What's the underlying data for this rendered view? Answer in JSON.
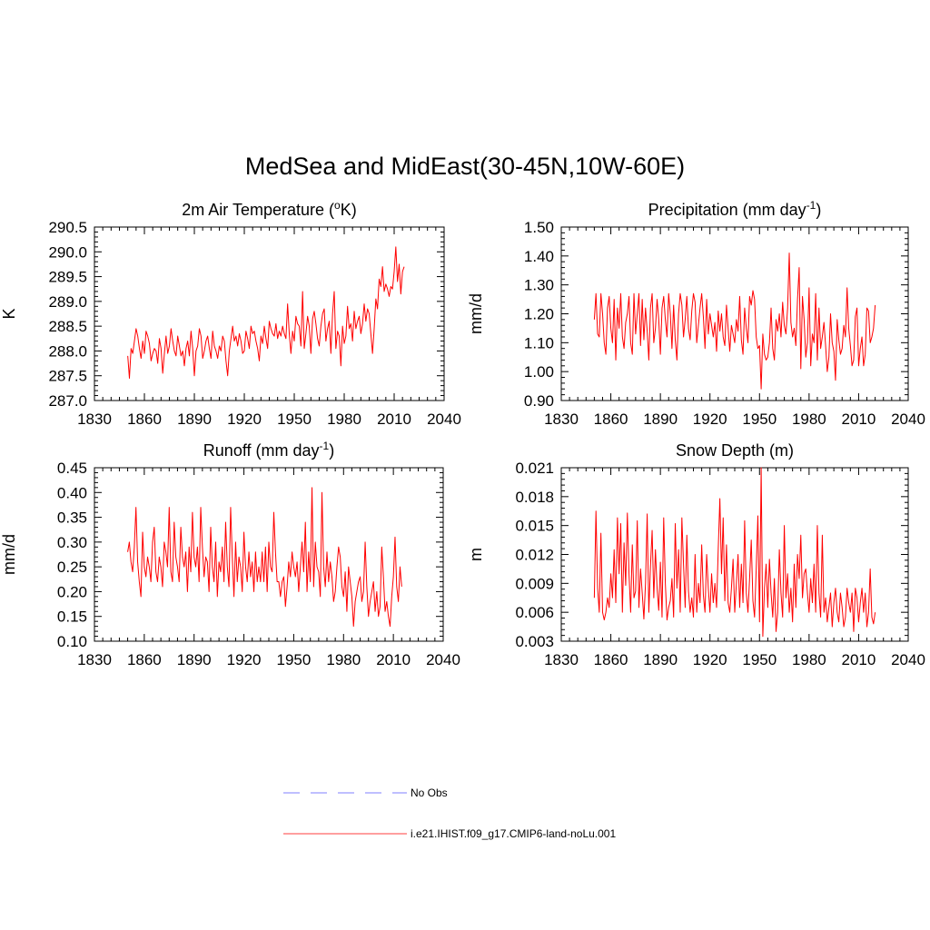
{
  "title": "MedSea and MidEast(30-45N,10W-60E)",
  "colors": {
    "model": "#ff0000",
    "obs": "#9999ff",
    "axis": "#000000"
  },
  "legend": [
    {
      "label": "No Obs",
      "style": "dashed",
      "color": "#9999ff"
    },
    {
      "label": "i.e21.IHIST.f09_g17.CMIP6-land-noLu.001",
      "style": "solid",
      "color": "#ff6666"
    }
  ],
  "chart_data": [
    {
      "type": "line",
      "title_main": "2m Air Temperature (",
      "title_sup": "o",
      "title_tail": "K)",
      "ylabel": "K",
      "xlim": [
        1830,
        2040
      ],
      "ylim": [
        287.0,
        290.5
      ],
      "xticks": [
        "1830",
        "1860",
        "1890",
        "1920",
        "1950",
        "1980",
        "2010",
        "2040"
      ],
      "yticks": [
        "287.0",
        "287.5",
        "288.0",
        "288.5",
        "289.0",
        "289.5",
        "290.0",
        "290.5"
      ],
      "series": [
        {
          "x_start": 1850,
          "values": [
            287.9,
            287.45,
            288.05,
            287.95,
            288.2,
            288.45,
            288.3,
            288.05,
            287.85,
            288.2,
            287.95,
            288.4,
            288.3,
            288.15,
            287.8,
            287.95,
            288.05,
            288.0,
            287.75,
            288.25,
            288.05,
            287.55,
            287.95,
            288.3,
            287.95,
            288.1,
            288.45,
            288.2,
            288.0,
            287.9,
            288.3,
            288.1,
            287.9,
            288.0,
            287.7,
            288.05,
            288.2,
            287.9,
            288.4,
            288.05,
            287.5,
            288.0,
            288.1,
            288.45,
            288.3,
            287.85,
            288.0,
            288.2,
            288.3,
            288.05,
            287.85,
            288.4,
            288.1,
            288.0,
            287.85,
            288.1,
            288.0,
            288.3,
            288.2,
            287.8,
            287.5,
            288.0,
            288.25,
            288.5,
            288.2,
            288.3,
            288.1,
            288.35,
            288.2,
            287.95,
            288.0,
            288.4,
            288.25,
            288.05,
            288.5,
            288.35,
            288.4,
            288.2,
            288.05,
            287.8,
            288.3,
            288.15,
            288.5,
            288.25,
            288.05,
            288.6,
            288.45,
            288.35,
            288.3,
            288.55,
            288.25,
            288.4,
            288.3,
            288.5,
            288.35,
            288.25,
            288.95,
            288.35,
            287.95,
            288.4,
            288.2,
            288.7,
            288.55,
            288.5,
            288.1,
            289.2,
            288.05,
            288.35,
            288.7,
            288.5,
            287.95,
            288.65,
            288.8,
            288.55,
            288.25,
            288.1,
            288.5,
            288.75,
            288.85,
            288.2,
            288.45,
            288.6,
            287.95,
            288.75,
            289.2,
            288.05,
            288.4,
            288.3,
            287.7,
            288.5,
            288.15,
            288.3,
            288.9,
            288.45,
            288.55,
            288.2,
            288.8,
            288.45,
            288.6,
            288.7,
            288.35,
            288.55,
            288.95,
            288.6,
            288.85,
            288.75,
            288.35,
            287.95,
            288.45,
            289.05,
            288.85,
            289.45,
            289.3,
            289.7,
            289.2,
            289.35,
            289.25,
            289.1,
            289.3,
            289.25,
            289.6,
            290.1,
            289.4,
            289.75,
            289.15,
            289.6,
            289.7
          ]
        }
      ]
    },
    {
      "type": "line",
      "title_main": "Precipitation (mm day",
      "title_sup": "-1",
      "title_tail": ")",
      "ylabel": "mm/d",
      "xlim": [
        1830,
        2040
      ],
      "ylim": [
        0.9,
        1.5
      ],
      "xticks": [
        "1830",
        "1860",
        "1890",
        "1920",
        "1950",
        "1980",
        "2010",
        "2040"
      ],
      "yticks": [
        "0.90",
        "1.00",
        "1.10",
        "1.20",
        "1.30",
        "1.40",
        "1.50"
      ],
      "series": [
        {
          "x_start": 1850,
          "values": [
            1.18,
            1.27,
            1.13,
            1.12,
            1.27,
            1.2,
            1.1,
            1.06,
            1.22,
            1.26,
            1.15,
            1.1,
            1.25,
            1.04,
            1.22,
            1.15,
            1.27,
            1.12,
            1.08,
            1.17,
            1.2,
            1.26,
            1.1,
            1.06,
            1.27,
            1.13,
            1.2,
            1.27,
            1.09,
            1.25,
            1.11,
            1.22,
            1.14,
            1.04,
            1.22,
            1.27,
            1.1,
            1.15,
            1.25,
            1.18,
            1.06,
            1.22,
            1.26,
            1.18,
            1.12,
            1.27,
            1.2,
            1.08,
            1.23,
            1.11,
            1.04,
            1.2,
            1.27,
            1.23,
            1.12,
            1.18,
            1.26,
            1.15,
            1.11,
            1.21,
            1.27,
            1.24,
            1.1,
            1.16,
            1.22,
            1.27,
            1.19,
            1.08,
            1.25,
            1.13,
            1.2,
            1.16,
            1.12,
            1.17,
            1.07,
            1.21,
            1.14,
            1.2,
            1.12,
            1.09,
            1.23,
            1.15,
            1.07,
            1.16,
            1.13,
            1.1,
            1.18,
            1.14,
            1.26,
            1.11,
            1.06,
            1.22,
            1.15,
            1.1,
            1.26,
            1.23,
            1.28,
            1.25,
            1.12,
            1.08,
            1.09,
            0.94,
            1.13,
            1.06,
            1.04,
            1.05,
            1.1,
            1.22,
            1.08,
            1.04,
            1.18,
            1.14,
            1.2,
            1.12,
            1.24,
            1.16,
            1.13,
            1.22,
            1.41,
            1.17,
            1.12,
            1.15,
            1.09,
            1.25,
            1.36,
            1.01,
            1.26,
            1.18,
            1.05,
            1.1,
            1.29,
            1.02,
            1.13,
            1.1,
            1.27,
            1.04,
            1.22,
            1.08,
            1.12,
            1.17,
            1.09,
            1.0,
            1.05,
            1.2,
            1.1,
            1.07,
            0.97,
            1.18,
            1.11,
            1.06,
            1.08,
            1.16,
            1.12,
            1.29,
            1.15,
            1.09,
            1.02,
            1.04,
            1.19,
            1.22,
            1.02,
            1.08,
            1.12,
            1.02,
            1.06,
            1.22,
            1.21,
            1.1,
            1.12,
            1.15,
            1.23
          ]
        }
      ]
    },
    {
      "type": "line",
      "title_main": "Runoff (mm day",
      "title_sup": "-1",
      "title_tail": ")",
      "ylabel": "mm/d",
      "xlim": [
        1830,
        2040
      ],
      "ylim": [
        0.1,
        0.45
      ],
      "xticks": [
        "1830",
        "1860",
        "1890",
        "1920",
        "1950",
        "1980",
        "2010",
        "2040"
      ],
      "yticks": [
        "0.10",
        "0.15",
        "0.20",
        "0.25",
        "0.30",
        "0.35",
        "0.40",
        "0.45"
      ],
      "series": [
        {
          "x_start": 1850,
          "values": [
            0.28,
            0.3,
            0.26,
            0.24,
            0.29,
            0.37,
            0.26,
            0.22,
            0.19,
            0.32,
            0.25,
            0.23,
            0.27,
            0.25,
            0.22,
            0.3,
            0.33,
            0.24,
            0.22,
            0.27,
            0.25,
            0.21,
            0.3,
            0.28,
            0.25,
            0.37,
            0.24,
            0.22,
            0.34,
            0.27,
            0.25,
            0.22,
            0.33,
            0.27,
            0.25,
            0.28,
            0.2,
            0.29,
            0.24,
            0.36,
            0.27,
            0.25,
            0.29,
            0.22,
            0.37,
            0.29,
            0.23,
            0.27,
            0.26,
            0.2,
            0.33,
            0.25,
            0.22,
            0.3,
            0.19,
            0.26,
            0.24,
            0.29,
            0.22,
            0.34,
            0.25,
            0.21,
            0.37,
            0.27,
            0.19,
            0.3,
            0.22,
            0.27,
            0.25,
            0.2,
            0.32,
            0.25,
            0.22,
            0.28,
            0.23,
            0.26,
            0.2,
            0.28,
            0.22,
            0.25,
            0.22,
            0.28,
            0.22,
            0.29,
            0.2,
            0.3,
            0.25,
            0.24,
            0.36,
            0.28,
            0.22,
            0.22,
            0.19,
            0.22,
            0.23,
            0.17,
            0.21,
            0.26,
            0.23,
            0.28,
            0.25,
            0.23,
            0.26,
            0.2,
            0.25,
            0.3,
            0.24,
            0.34,
            0.2,
            0.28,
            0.22,
            0.41,
            0.21,
            0.3,
            0.25,
            0.24,
            0.19,
            0.4,
            0.25,
            0.21,
            0.28,
            0.22,
            0.26,
            0.23,
            0.18,
            0.2,
            0.25,
            0.29,
            0.27,
            0.21,
            0.19,
            0.24,
            0.16,
            0.25,
            0.22,
            0.19,
            0.13,
            0.18,
            0.2,
            0.22,
            0.23,
            0.18,
            0.2,
            0.3,
            0.21,
            0.15,
            0.18,
            0.2,
            0.22,
            0.16,
            0.2,
            0.15,
            0.17,
            0.29,
            0.23,
            0.16,
            0.18,
            0.15,
            0.13,
            0.19,
            0.23,
            0.31,
            0.21,
            0.18,
            0.25,
            0.21
          ]
        }
      ]
    },
    {
      "type": "line",
      "title_main": "Snow Depth (m)",
      "title_sup": "",
      "title_tail": "",
      "ylabel": "m",
      "xlim": [
        1830,
        2040
      ],
      "ylim": [
        0.003,
        0.021
      ],
      "xticks": [
        "1830",
        "1860",
        "1890",
        "1920",
        "1950",
        "1980",
        "2010",
        "2040"
      ],
      "yticks": [
        "0.003",
        "0.006",
        "0.009",
        "0.012",
        "0.015",
        "0.018",
        "0.021"
      ],
      "series": [
        {
          "x_start": 1850,
          "values": [
            0.0075,
            0.0165,
            0.0085,
            0.006,
            0.0142,
            0.006,
            0.0052,
            0.006,
            0.0075,
            0.0065,
            0.01,
            0.0075,
            0.0125,
            0.007,
            0.0158,
            0.01,
            0.0152,
            0.006,
            0.0132,
            0.0088,
            0.0163,
            0.01,
            0.006,
            0.013,
            0.0075,
            0.0082,
            0.0155,
            0.0065,
            0.0105,
            0.008,
            0.0053,
            0.009,
            0.0162,
            0.006,
            0.0108,
            0.0145,
            0.0075,
            0.0125,
            0.0085,
            0.0062,
            0.0112,
            0.0055,
            0.0158,
            0.009,
            0.0052,
            0.0065,
            0.0072,
            0.0095,
            0.0055,
            0.0152,
            0.0085,
            0.0125,
            0.006,
            0.0158,
            0.011,
            0.0065,
            0.014,
            0.0082,
            0.006,
            0.0075,
            0.0055,
            0.012,
            0.006,
            0.009,
            0.007,
            0.013,
            0.0078,
            0.006,
            0.012,
            0.0085,
            0.006,
            0.01,
            0.007,
            0.009,
            0.0065,
            0.0125,
            0.0178,
            0.01,
            0.0158,
            0.0072,
            0.013,
            0.007,
            0.006,
            0.0085,
            0.0115,
            0.006,
            0.009,
            0.012,
            0.0065,
            0.011,
            0.007,
            0.0155,
            0.008,
            0.006,
            0.0095,
            0.0135,
            0.0072,
            0.0055,
            0.0105,
            0.016,
            0.005,
            0.021,
            0.0035,
            0.0085,
            0.011,
            0.0065,
            0.0115,
            0.008,
            0.0055,
            0.0095,
            0.004,
            0.006,
            0.0125,
            0.008,
            0.0055,
            0.015,
            0.0075,
            0.01,
            0.006,
            0.0085,
            0.005,
            0.011,
            0.0065,
            0.012,
            0.0095,
            0.014,
            0.0075,
            0.01,
            0.0105,
            0.008,
            0.006,
            0.0095,
            0.007,
            0.011,
            0.006,
            0.015,
            0.008,
            0.0055,
            0.014,
            0.006,
            0.0075,
            0.005,
            0.0065,
            0.008,
            0.0045,
            0.007,
            0.0085,
            0.006,
            0.005,
            0.008,
            0.0065,
            0.0045,
            0.0055,
            0.0085,
            0.007,
            0.006,
            0.008,
            0.004,
            0.0085,
            0.0075,
            0.005,
            0.007,
            0.0085,
            0.006,
            0.008,
            0.0045,
            0.006,
            0.0105,
            0.0055,
            0.0048,
            0.006
          ]
        }
      ]
    }
  ]
}
